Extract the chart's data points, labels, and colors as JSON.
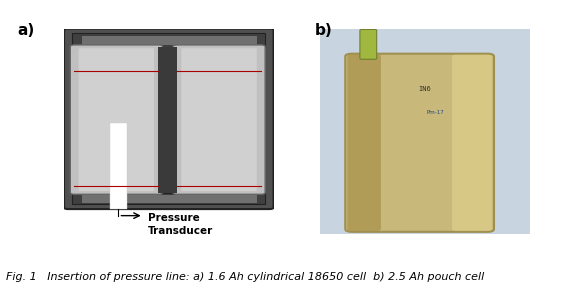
{
  "fig_width": 5.82,
  "fig_height": 2.85,
  "dpi": 100,
  "background_color": "#ffffff",
  "label_a": "a)",
  "label_b": "b)",
  "label_fontsize": 11,
  "label_fontweight": "bold",
  "annotation_text": "Pressure\nTransducer",
  "annotation_fontsize": 7.5,
  "annotation_fontweight": "bold",
  "caption": "Fig. 1   Insertion of pressure line: a) 1.6 Ah cylindrical 18650 cell  b) 2.5 Ah pouch cell",
  "caption_fontsize": 8.0,
  "caption_style": "italic",
  "cell_outer_bg": "#3a3a3a",
  "cell_inner_bg": "#888888",
  "cell_tube_fill": "#b8b8b8",
  "cell_tube_edge": "#555555",
  "cell_cap_fill": "#555555",
  "cell_cap_detail": "#888888",
  "red_line_color": "#aa0000",
  "pressure_line_color": "#ffffff",
  "gap_color": "#3a3a3a",
  "pouch_bg": "#c8b87a",
  "pouch_edge": "#a09050",
  "pouch_highlight": "#e8d890",
  "pouch_shadow": "#a08840",
  "pouch_tab_color": "#b8b060",
  "pouch_tube_color": "#80a040",
  "photo_bg": "#d4c898"
}
